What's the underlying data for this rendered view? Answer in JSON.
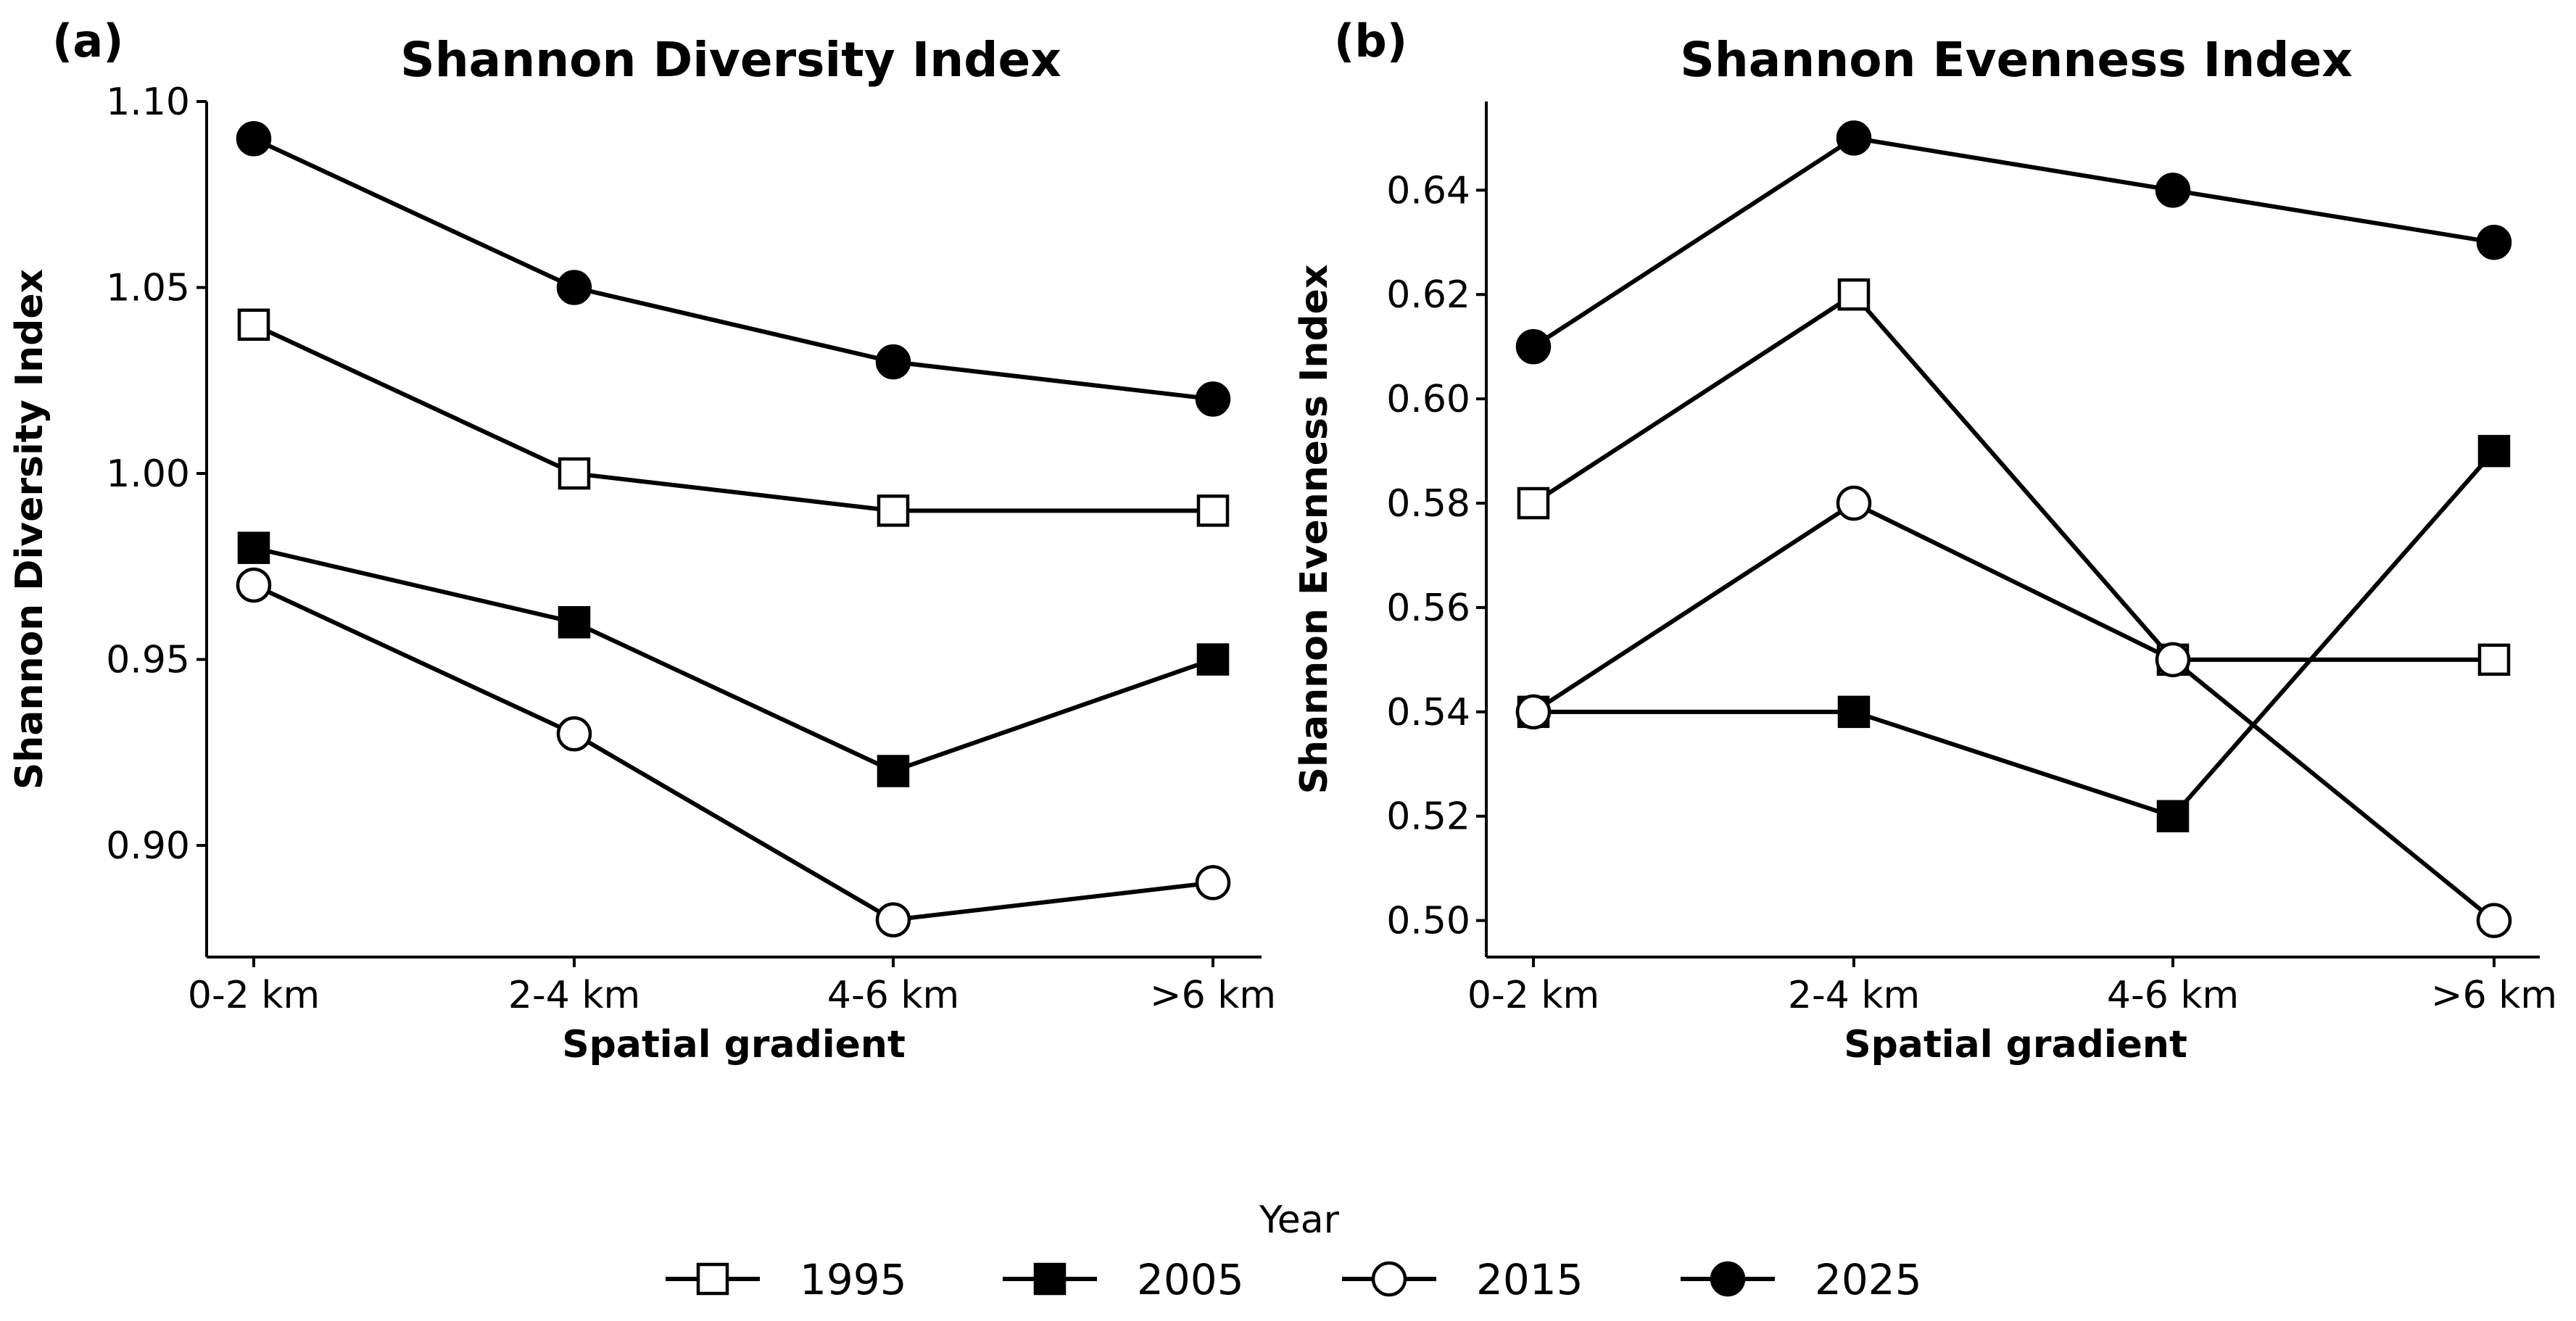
{
  "chart_data": [
    {
      "type": "line",
      "panel": "(a)",
      "title": "Shannon Diversity Index",
      "xlabel": "Spatial gradient",
      "ylabel": "Shannon Diversity Index",
      "categories": [
        "0-2 km",
        "2-4 km",
        "4-6 km",
        ">6 km"
      ],
      "ylim": [
        0.87,
        1.1
      ],
      "yticks": [
        1.1,
        1.05,
        1.0,
        0.95,
        0.9
      ],
      "ytick_labels": [
        "1.10",
        "1.05",
        "1.00",
        "0.95",
        "0.90"
      ],
      "grid": false,
      "series": [
        {
          "name": "1995",
          "values": [
            1.04,
            1.0,
            0.99,
            0.99
          ]
        },
        {
          "name": "2005",
          "values": [
            0.98,
            0.96,
            0.92,
            0.95
          ]
        },
        {
          "name": "2015",
          "values": [
            0.97,
            0.93,
            0.88,
            0.89
          ]
        },
        {
          "name": "2025",
          "values": [
            1.09,
            1.05,
            1.03,
            1.02
          ]
        }
      ]
    },
    {
      "type": "line",
      "panel": "(b)",
      "title": "Shannon Evenness Index",
      "xlabel": "Spatial gradient",
      "ylabel": "Shannon Evenness Index",
      "categories": [
        "0-2 km",
        "2-4 km",
        "4-6 km",
        ">6 km"
      ],
      "ylim": [
        0.493,
        0.657
      ],
      "yticks": [
        0.64,
        0.62,
        0.6,
        0.58,
        0.56,
        0.54,
        0.52,
        0.5
      ],
      "ytick_labels": [
        "0.64",
        "0.62",
        "0.60",
        "0.58",
        "0.56",
        "0.54",
        "0.52",
        "0.50"
      ],
      "grid": false,
      "series": [
        {
          "name": "1995",
          "values": [
            0.58,
            0.62,
            0.55,
            0.55
          ]
        },
        {
          "name": "2005",
          "values": [
            0.54,
            0.54,
            0.52,
            0.59
          ]
        },
        {
          "name": "2015",
          "values": [
            0.54,
            0.58,
            0.55,
            0.5
          ]
        },
        {
          "name": "2025",
          "values": [
            0.61,
            0.65,
            0.64,
            0.63
          ]
        }
      ]
    }
  ],
  "legend": {
    "title": "Year",
    "placement": "bottom-center",
    "items": [
      {
        "label": "1995",
        "marker": "square",
        "fill": "open"
      },
      {
        "label": "2005",
        "marker": "square",
        "fill": "filled"
      },
      {
        "label": "2015",
        "marker": "circle",
        "fill": "open"
      },
      {
        "label": "2025",
        "marker": "circle",
        "fill": "filled"
      }
    ]
  },
  "colors": {
    "line": "#000000",
    "filled_marker": "#000000",
    "open_marker": "#ffffff"
  }
}
